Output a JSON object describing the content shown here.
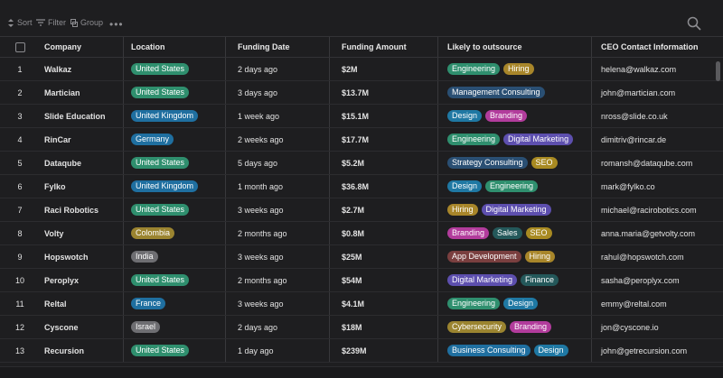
{
  "toolbar": {
    "sort_label": "Sort",
    "filter_label": "Filter",
    "group_label": "Group",
    "more_label": "•••",
    "search_icon": "search-icon"
  },
  "columns": {
    "company": "Company",
    "location": "Location",
    "funding_date": "Funding Date",
    "funding_amount": "Funding Amount",
    "outsource": "Likely to outsource",
    "ceo": "CEO Contact Information"
  },
  "tag_colors": {
    "United States": "#2f8f6e",
    "United Kingdom": "#1f6fa0",
    "Germany": "#1f6fa0",
    "Colombia": "#9b8430",
    "India": "#6e6e72",
    "France": "#1f6fa0",
    "Israel": "#6e6e72",
    "Engineering": "#2f8f6e",
    "Hiring": "#a8862a",
    "Management Consulting": "#2a4f73",
    "Design": "#1f78a3",
    "Branding": "#b23c9c",
    "Digital Marketing": "#5d4fae",
    "Strategy Consulting": "#2a4f73",
    "SEO": "#a88a22",
    "Sales": "#24585a",
    "App Development": "#7a3f3f",
    "Finance": "#24585a",
    "Cybersecurity": "#9b8430",
    "Business Consulting": "#1f6fa0"
  },
  "rows": [
    {
      "idx": "1",
      "company": "Walkaz",
      "location": "United States",
      "date": "2 days ago",
      "amount": "$2M",
      "tags": [
        "Engineering",
        "Hiring"
      ],
      "ceo": "helena@walkaz.com"
    },
    {
      "idx": "2",
      "company": "Martician",
      "location": "United States",
      "date": "3 days ago",
      "amount": "$13.7M",
      "tags": [
        "Management Consulting"
      ],
      "ceo": "john@martician.com"
    },
    {
      "idx": "3",
      "company": "Slide Education",
      "location": "United Kingdom",
      "date": "1 week ago",
      "amount": "$15.1M",
      "tags": [
        "Design",
        "Branding"
      ],
      "ceo": "nross@slide.co.uk"
    },
    {
      "idx": "4",
      "company": "RinCar",
      "location": "Germany",
      "date": "2 weeks ago",
      "amount": "$17.7M",
      "tags": [
        "Engineering",
        "Digital Marketing"
      ],
      "ceo": "dimitriv@rincar.de"
    },
    {
      "idx": "5",
      "company": "Dataqube",
      "location": "United States",
      "date": "5 days ago",
      "amount": "$5.2M",
      "tags": [
        "Strategy Consulting",
        "SEO"
      ],
      "ceo": "romansh@dataqube.com"
    },
    {
      "idx": "6",
      "company": "Fylko",
      "location": "United Kingdom",
      "date": "1 month ago",
      "amount": "$36.8M",
      "tags": [
        "Design",
        "Engineering"
      ],
      "ceo": "mark@fylko.co"
    },
    {
      "idx": "7",
      "company": "Raci Robotics",
      "location": "United States",
      "date": "3 weeks ago",
      "amount": "$2.7M",
      "tags": [
        "Hiring",
        "Digital Marketing"
      ],
      "ceo": "michael@racirobotics.com"
    },
    {
      "idx": "8",
      "company": "Volty",
      "location": "Colombia",
      "date": "2 months ago",
      "amount": "$0.8M",
      "tags": [
        "Branding",
        "Sales",
        "SEO"
      ],
      "ceo": "anna.maria@getvolty.com"
    },
    {
      "idx": "9",
      "company": "Hopswotch",
      "location": "India",
      "date": "3 weeks ago",
      "amount": "$25M",
      "tags": [
        "App Development",
        "Hiring"
      ],
      "ceo": "rahul@hopswotch.com"
    },
    {
      "idx": "10",
      "company": "Peroplyx",
      "location": "United States",
      "date": "2 months ago",
      "amount": "$54M",
      "tags": [
        "Digital Marketing",
        "Finance"
      ],
      "ceo": "sasha@peroplyx.com"
    },
    {
      "idx": "11",
      "company": "Reltal",
      "location": "France",
      "date": "3 weeks ago",
      "amount": "$4.1M",
      "tags": [
        "Engineering",
        "Design"
      ],
      "ceo": "emmy@reltal.com"
    },
    {
      "idx": "12",
      "company": "Cyscone",
      "location": "Israel",
      "date": "2 days ago",
      "amount": "$18M",
      "tags": [
        "Cybersecurity",
        "Branding"
      ],
      "ceo": "jon@cyscone.io"
    },
    {
      "idx": "13",
      "company": "Recursion",
      "location": "United States",
      "date": "1 day ago",
      "amount": "$239M",
      "tags": [
        "Business Consulting",
        "Design"
      ],
      "ceo": "john@getrecursion.com"
    }
  ]
}
